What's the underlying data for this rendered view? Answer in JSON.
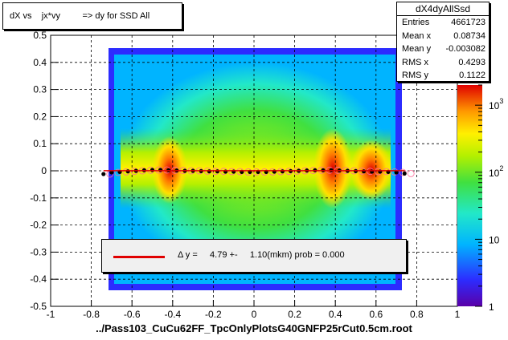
{
  "chart_data": {
    "type": "heatmap",
    "title": "dX vs    jx*vy         => dy for SSD All",
    "xlabel": "../Pass103_CuCu62FF_TpcOnlyPlotsG40GNFP25rCut0.5cm.root",
    "ylabel": "",
    "xlim": [
      -1,
      1
    ],
    "ylim": [
      -0.5,
      0.5
    ],
    "x_ticks": [
      "-1",
      "-0.8",
      "-0.6",
      "-0.4",
      "-0.2",
      "0",
      "0.2",
      "0.4",
      "0.6",
      "0.8",
      "1"
    ],
    "y_ticks": [
      "0.5",
      "0.4",
      "0.3",
      "0.2",
      "0.1",
      "0",
      "-0.1",
      "-0.2",
      "-0.3",
      "-0.4",
      "-0.5"
    ],
    "grid": true,
    "color_scale": "log",
    "colorbar_ticks": [
      "1",
      "10",
      "10^2",
      "10^3"
    ],
    "profile_points": {
      "x": [
        -0.74,
        -0.7,
        -0.66,
        -0.62,
        -0.58,
        -0.54,
        -0.5,
        -0.46,
        -0.42,
        -0.38,
        -0.34,
        -0.3,
        -0.26,
        -0.22,
        -0.18,
        -0.14,
        -0.1,
        -0.06,
        -0.02,
        0.02,
        0.06,
        0.1,
        0.14,
        0.18,
        0.22,
        0.26,
        0.3,
        0.34,
        0.38,
        0.42,
        0.46,
        0.5,
        0.54,
        0.58,
        0.62,
        0.66,
        0.7,
        0.74
      ],
      "y": [
        -0.012,
        -0.006,
        -0.004,
        -0.002,
        0.0,
        0.002,
        0.003,
        0.003,
        0.002,
        0.001,
        0.0,
        0.0,
        -0.001,
        -0.002,
        -0.002,
        -0.003,
        -0.003,
        -0.004,
        -0.004,
        -0.004,
        -0.004,
        -0.003,
        -0.002,
        -0.001,
        0.0,
        0.001,
        0.002,
        0.002,
        0.002,
        0.001,
        0.0,
        -0.001,
        -0.002,
        -0.003,
        -0.003,
        -0.004,
        -0.006,
        -0.01
      ]
    },
    "fit": {
      "legend": "Δ y =     4.79 +-     1.10(mkm) prob = 0.000",
      "color": "#e00000",
      "value": 4.79,
      "error": 1.1,
      "unit": "mkm",
      "prob": 0.0
    },
    "stats": {
      "name": "dX4dyAllSsd",
      "rows": [
        {
          "label": "Entries",
          "value": "4661723"
        },
        {
          "label": "Mean x",
          "value": "0.08734"
        },
        {
          "label": "Mean y",
          "value": "-0.003082"
        },
        {
          "label": "RMS x",
          "value": "0.4293"
        },
        {
          "label": "RMS y",
          "value": "0.1122"
        }
      ]
    }
  }
}
